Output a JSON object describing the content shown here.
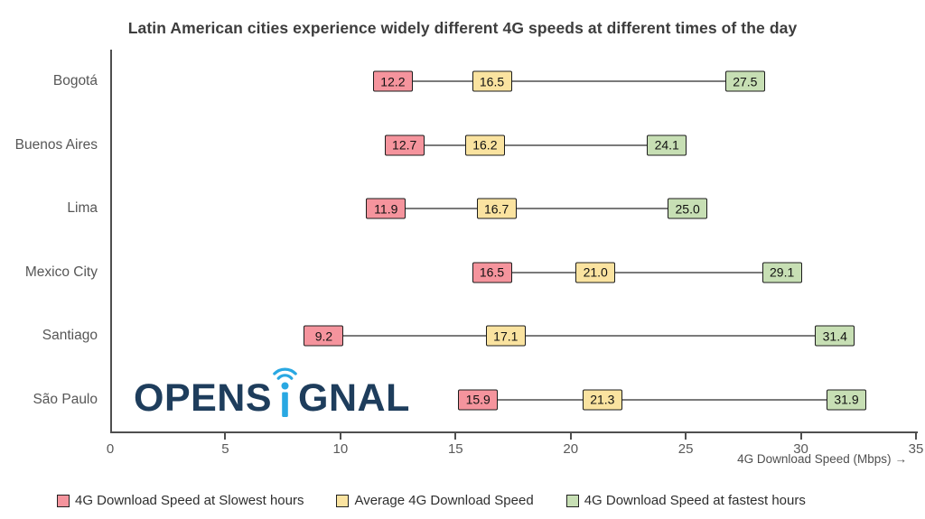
{
  "title": "Latin American cities experience widely different 4G speeds at different times of the day",
  "chart_data": {
    "type": "dumbbell",
    "title": "Latin American cities experience widely different 4G speeds at different times of the day",
    "categories": [
      "Bogotá",
      "Buenos Aires",
      "Lima",
      "Mexico City",
      "Santiago",
      "São Paulo"
    ],
    "series": [
      {
        "key": "slowest",
        "name": "4G Download Speed at Slowest hours",
        "color": "#f5949d",
        "values": [
          12.2,
          12.7,
          11.9,
          16.5,
          9.2,
          15.9
        ]
      },
      {
        "key": "average",
        "name": "Average 4G Download Speed",
        "color": "#fae3a0",
        "values": [
          16.5,
          16.2,
          16.7,
          21.0,
          17.1,
          21.3
        ]
      },
      {
        "key": "fastest",
        "name": "4G Download Speed at fastest hours",
        "color": "#c7dfb4",
        "values": [
          27.5,
          24.1,
          25.0,
          29.1,
          31.4,
          31.9
        ]
      }
    ],
    "xlabel": "4G Download Speed (Mbps)",
    "xlabel_arrow": "→",
    "xlim": [
      0,
      35
    ],
    "xticks": [
      0,
      5,
      10,
      15,
      20,
      25,
      30,
      35
    ],
    "grid": false,
    "legend_position": "bottom"
  },
  "logo": {
    "text_left": "OPENS",
    "text_right": "GNAL",
    "navy": "#1e3d5c",
    "blue": "#29a8e2"
  }
}
